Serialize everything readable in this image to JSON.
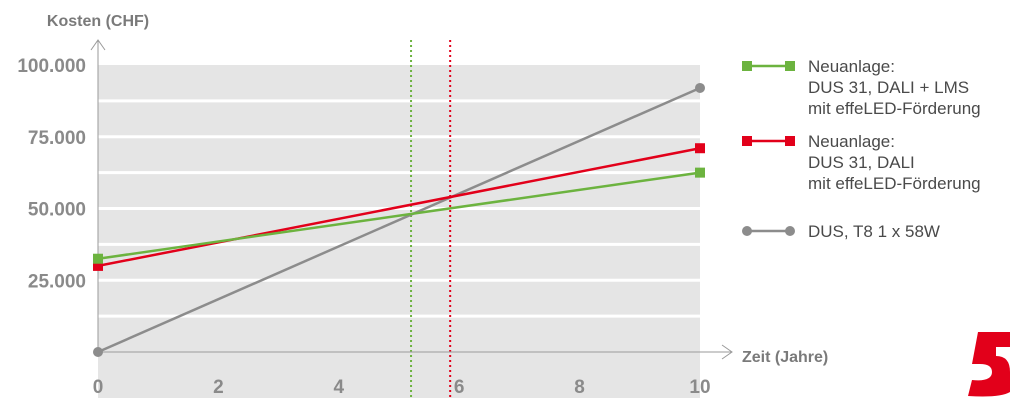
{
  "chart_data": {
    "type": "line",
    "ylabel": "Kosten (CHF)",
    "xlabel": "Zeit (Jahre)",
    "x": [
      0,
      10
    ],
    "xlim": [
      0,
      10
    ],
    "ylim": [
      0,
      100000
    ],
    "xticks": [
      {
        "value": 0,
        "label": "0"
      },
      {
        "value": 2,
        "label": "2"
      },
      {
        "value": 4,
        "label": "4"
      },
      {
        "value": 6,
        "label": "6"
      },
      {
        "value": 8,
        "label": "8"
      },
      {
        "value": 10,
        "label": "10"
      }
    ],
    "yticks": [
      {
        "value": 25000,
        "label": "25.000"
      },
      {
        "value": 50000,
        "label": "50.000"
      },
      {
        "value": 75000,
        "label": "75.000"
      },
      {
        "value": 100000,
        "label": "100.000"
      }
    ],
    "gridlines_y": [
      12500,
      25000,
      37500,
      50000,
      62500,
      75000,
      87500
    ],
    "series": [
      {
        "key": "green",
        "legend_lines": [
          "Neuanlage:",
          "DUS 31, DALI + LMS",
          "mit effeLED-Förderung"
        ],
        "color": "#6cb33f",
        "marker": "square",
        "values": [
          32500,
          62500
        ]
      },
      {
        "key": "red",
        "legend_lines": [
          "Neuanlage:",
          "DUS 31, DALI",
          "mit effeLED-Förderung"
        ],
        "color": "#e2001a",
        "marker": "square",
        "values": [
          30000,
          71000
        ]
      },
      {
        "key": "gray",
        "legend_lines": [
          "DUS, T8 1 x 58W"
        ],
        "color": "#8c8c8c",
        "marker": "circle",
        "values": [
          0,
          92000
        ]
      }
    ],
    "break_even_lines": [
      {
        "x": 5.2,
        "color": "#6cb33f"
      },
      {
        "x": 5.85,
        "color": "#e2001a"
      }
    ],
    "plot_background": "#e5e5e5",
    "legend_position": "right"
  },
  "logo": {
    "color": "#e2001a",
    "icon": "brand-logo-icon"
  }
}
